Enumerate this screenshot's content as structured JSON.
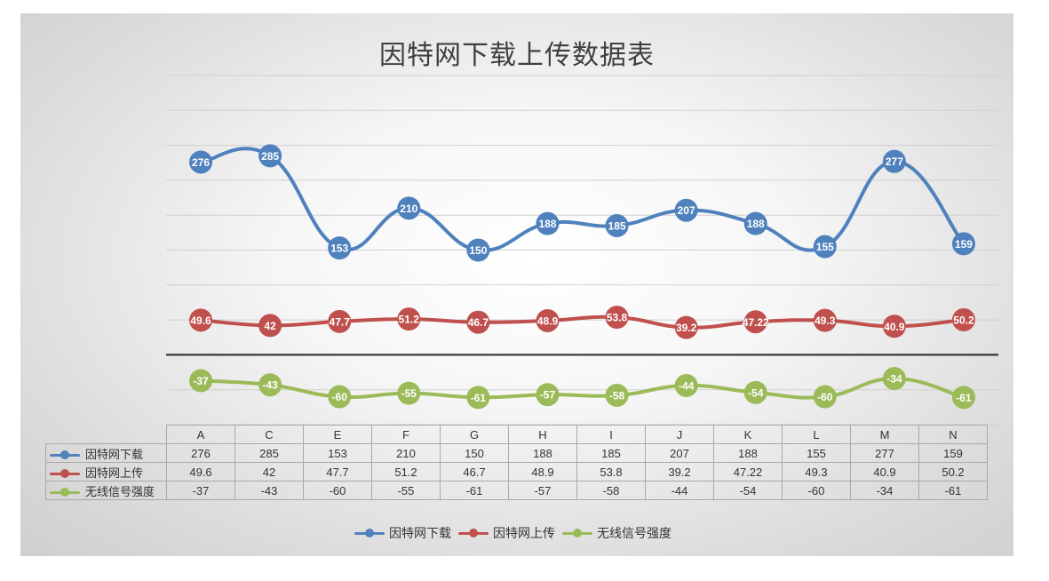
{
  "chart_data": {
    "type": "line",
    "title": "因特网下载上传数据表",
    "categories": [
      "A",
      "C",
      "E",
      "F",
      "G",
      "H",
      "I",
      "J",
      "K",
      "L",
      "M",
      "N"
    ],
    "series": [
      {
        "name": "因特网下载",
        "color": "#4f81bd",
        "values": [
          276,
          285,
          153,
          210,
          150,
          188,
          185,
          207,
          188,
          155,
          277,
          159
        ],
        "labels": [
          "276",
          "285",
          "153",
          "210",
          "150",
          "188",
          "185",
          "207",
          "188",
          "155",
          "277",
          "159"
        ]
      },
      {
        "name": "因特网上传",
        "color": "#c0504d",
        "values": [
          49.6,
          42,
          47.7,
          51.2,
          46.7,
          48.9,
          53.8,
          39.2,
          47.22,
          49.3,
          40.9,
          50.2
        ],
        "labels": [
          "49.6",
          "42",
          "47.7",
          "51.2",
          "46.7",
          "48.9",
          "53.8",
          "39.2",
          "47.22",
          "49.3",
          "40.9",
          "50.2"
        ]
      },
      {
        "name": "无线信号强度",
        "color": "#9bbb59",
        "values": [
          -37,
          -43,
          -60,
          -55,
          -61,
          -57,
          -58,
          -44,
          -54,
          -60,
          -34,
          -61
        ],
        "labels": [
          "-37",
          "-43",
          "-60",
          "-55",
          "-61",
          "-57",
          "-58",
          "-44",
          "-54",
          "-60",
          "-34",
          "-61"
        ]
      }
    ],
    "ylim": [
      -100,
      400
    ],
    "smooth": true,
    "gridlines": true,
    "data_table": true,
    "legend_position": "bottom"
  }
}
